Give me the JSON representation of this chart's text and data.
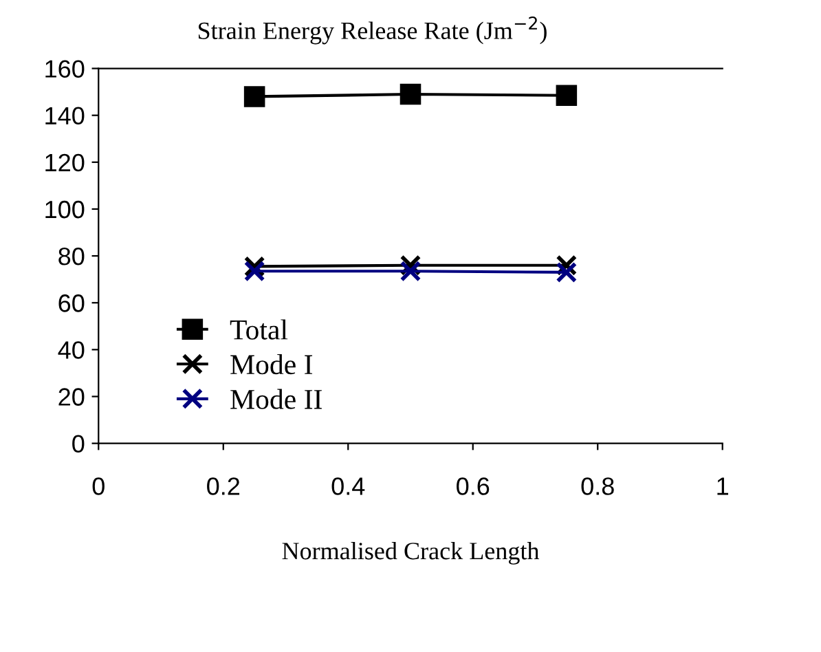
{
  "chart_data": {
    "type": "line",
    "title": "Strain Energy Release Rate (Jm$^{−2}$)",
    "xlabel": "Normalised Crack Length",
    "x": [
      0.25,
      0.5,
      0.75
    ],
    "series": [
      {
        "name": "Total",
        "color": "#000000",
        "marker": "square",
        "values": [
          148,
          149,
          148.5
        ]
      },
      {
        "name": "Mode I",
        "color": "#000000",
        "marker": "cross",
        "values": [
          75.5,
          76,
          76
        ]
      },
      {
        "name": "Mode II",
        "color": "#000080",
        "marker": "cross",
        "values": [
          73.5,
          73.5,
          73
        ]
      }
    ],
    "xlim": [
      0,
      1
    ],
    "xticks": [
      0,
      0.2,
      0.4,
      0.6,
      0.8,
      1
    ],
    "ylim": [
      0,
      160
    ],
    "yticks": [
      0,
      20,
      40,
      60,
      80,
      100,
      120,
      140,
      160
    ],
    "grid": false,
    "legend": "bottom left",
    "line_style": "solid"
  }
}
